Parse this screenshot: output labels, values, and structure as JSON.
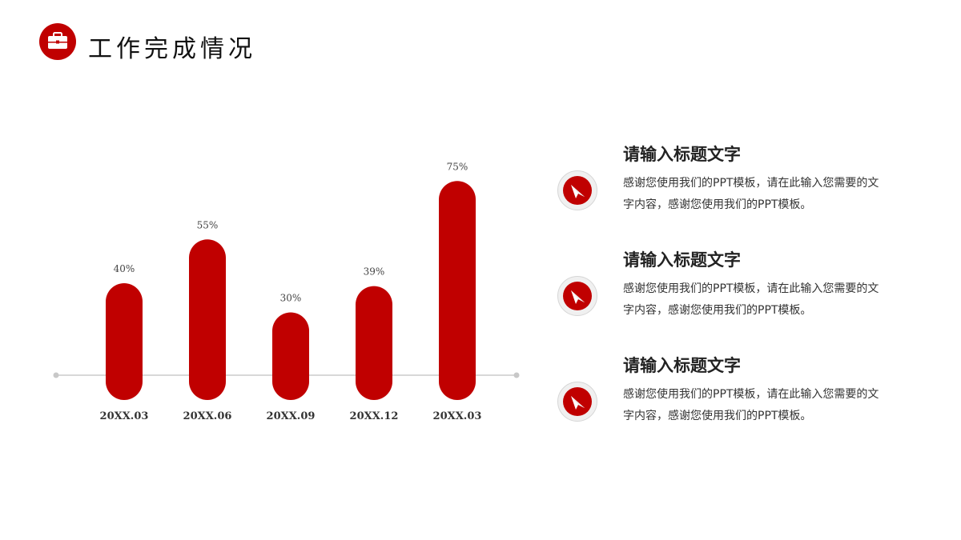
{
  "header": {
    "title": "工作完成情况",
    "icon": "briefcase-icon"
  },
  "colors": {
    "accent": "#c00000",
    "axis": "#cccccc"
  },
  "chart_data": {
    "type": "bar",
    "categories": [
      "20XX.03",
      "20XX.06",
      "20XX.09",
      "20XX.12",
      "20XX.03"
    ],
    "values": [
      40,
      55,
      30,
      39,
      75
    ],
    "data_labels": [
      "40%",
      "55%",
      "30%",
      "39%",
      "75%"
    ],
    "ylim": [
      0,
      100
    ],
    "grid": false,
    "legend": "none"
  },
  "items": [
    {
      "title": "请输入标题文字",
      "desc": "感谢您使用我们的PPT模板，请在此输入您需要的文字内容，感谢您使用我们的PPT模板。",
      "icon": "paper-plane-icon"
    },
    {
      "title": "请输入标题文字",
      "desc": "感谢您使用我们的PPT模板，请在此输入您需要的文字内容，感谢您使用我们的PPT模板。",
      "icon": "paper-plane-icon"
    },
    {
      "title": "请输入标题文字",
      "desc": "感谢您使用我们的PPT模板，请在此输入您需要的文字内容，感谢您使用我们的PPT模板。",
      "icon": "paper-plane-icon"
    }
  ]
}
